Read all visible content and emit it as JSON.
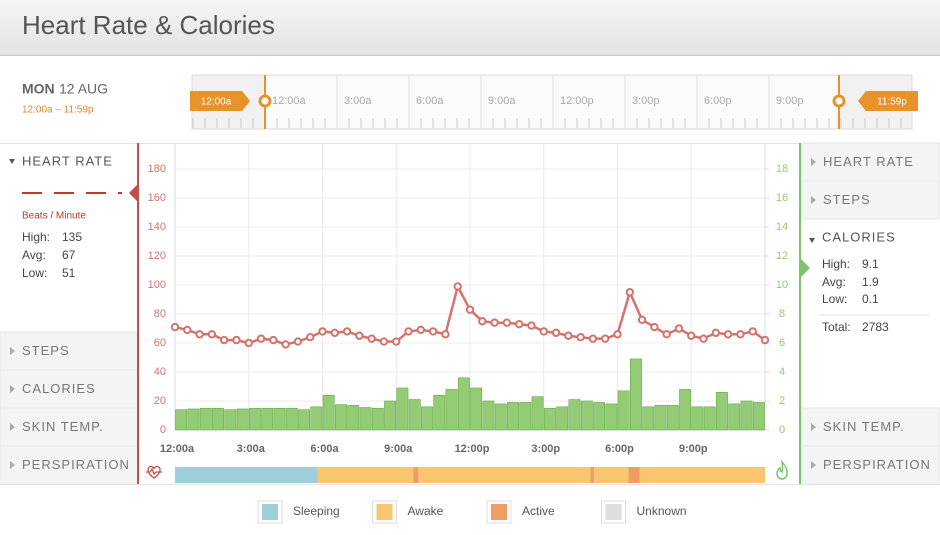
{
  "header": {
    "title": "Heart Rate & Calories"
  },
  "date": {
    "day": "MON",
    "date": "12 AUG",
    "range": "12:00a – 11:59p"
  },
  "timeline": {
    "start_label": "12:00a",
    "end_label": "11:59p",
    "labels": [
      "12:00a",
      "3:00a",
      "6:00a",
      "9:00a",
      "12:00p",
      "3:00p",
      "6:00p",
      "9:00p"
    ]
  },
  "left_panel": {
    "active": {
      "title": "HEART RATE",
      "unit": "Beats / Minute",
      "stats": [
        {
          "label": "High:",
          "value": 135
        },
        {
          "label": "Avg:",
          "value": 67
        },
        {
          "label": "Low:",
          "value": 51
        }
      ]
    },
    "sections": [
      "STEPS",
      "CALORIES",
      "SKIN TEMP.",
      "PERSPIRATION"
    ]
  },
  "right_panel": {
    "sections_top": [
      "HEART RATE",
      "STEPS"
    ],
    "active": {
      "title": "CALORIES",
      "stats": [
        {
          "label": "High:",
          "value": 9.1
        },
        {
          "label": "Avg:",
          "value": 1.9
        },
        {
          "label": "Low:",
          "value": 0.1
        }
      ],
      "total": {
        "label": "Total:",
        "value": 2783
      }
    },
    "sections_bottom": [
      "SKIN TEMP.",
      "PERSPIRATION"
    ]
  },
  "chart_data": {
    "type": "combo",
    "grid": true,
    "xlim": [
      0,
      24
    ],
    "xticks": [
      {
        "value": 0,
        "label": "12:00a"
      },
      {
        "value": 3,
        "label": "3:00a"
      },
      {
        "value": 6,
        "label": "6:00a"
      },
      {
        "value": 9,
        "label": "9:00a"
      },
      {
        "value": 12,
        "label": "12:00p"
      },
      {
        "value": 15,
        "label": "3:00p"
      },
      {
        "value": 18,
        "label": "6:00p"
      },
      {
        "value": 21,
        "label": "9:00p"
      }
    ],
    "ylim": [
      0,
      200
    ],
    "yticks": [
      0,
      20,
      40,
      60,
      80,
      100,
      120,
      140,
      160,
      180
    ],
    "y2lim": [
      0,
      20
    ],
    "y2ticks": [
      0,
      2,
      4,
      6,
      8,
      10,
      12,
      14,
      16,
      18
    ],
    "series": [
      {
        "type": "bar",
        "axis": "y2",
        "color": "#93cc74",
        "x": [
          0.25,
          0.75,
          1.25,
          1.75,
          2.25,
          2.75,
          3.25,
          3.75,
          4.25,
          4.75,
          5.25,
          5.75,
          6.25,
          6.75,
          7.25,
          7.75,
          8.25,
          8.75,
          9.25,
          9.75,
          10.25,
          10.75,
          11.25,
          11.75,
          12.25,
          12.75,
          13.25,
          13.75,
          14.25,
          14.75,
          15.25,
          15.75,
          16.25,
          16.75,
          17.25,
          17.75,
          18.25,
          18.75,
          19.25,
          19.75,
          20.25,
          20.75,
          21.25,
          21.75,
          22.25,
          22.75,
          23.25,
          23.75
        ],
        "values": [
          1.4,
          1.45,
          1.5,
          1.5,
          1.4,
          1.45,
          1.5,
          1.5,
          1.5,
          1.5,
          1.4,
          1.6,
          2.4,
          1.75,
          1.7,
          1.55,
          1.5,
          2.0,
          2.9,
          2.1,
          1.6,
          2.4,
          2.8,
          3.6,
          2.9,
          2.0,
          1.8,
          1.9,
          1.9,
          2.3,
          1.5,
          1.6,
          2.1,
          2.0,
          1.9,
          1.8,
          2.7,
          4.9,
          1.6,
          1.7,
          1.7,
          2.8,
          1.6,
          1.6,
          2.6,
          1.8,
          2.0,
          1.9
        ]
      },
      {
        "type": "line",
        "color": "#d4736b",
        "x": [
          0,
          0.5,
          1,
          1.5,
          2,
          2.5,
          3,
          3.5,
          4,
          4.5,
          5,
          5.5,
          6,
          6.5,
          7,
          7.5,
          8,
          8.5,
          9,
          9.5,
          10,
          10.5,
          11,
          11.5,
          12,
          12.5,
          13,
          13.5,
          14,
          14.5,
          15,
          15.5,
          16,
          16.5,
          17,
          17.5,
          18,
          18.5,
          19,
          19.5,
          20,
          20.5,
          21,
          21.5,
          22,
          22.5,
          23,
          23.5,
          24
        ],
        "values": [
          71,
          69,
          66,
          66,
          62,
          62,
          60,
          63,
          62,
          59,
          61,
          64,
          68,
          67,
          68,
          65,
          63,
          61,
          61,
          68,
          69,
          68,
          66,
          99,
          83,
          75,
          74,
          74,
          73,
          72,
          68,
          67,
          65,
          64,
          63,
          63,
          66,
          95,
          76,
          71,
          66,
          70,
          65,
          63,
          67,
          66,
          66,
          68,
          62
        ]
      }
    ],
    "activity_states": [
      {
        "name": "Sleeping",
        "color": "#9dcedb",
        "segments": [
          [
            0,
            5.8
          ]
        ]
      },
      {
        "name": "Awake",
        "color": "#f9c56f",
        "segments": [
          [
            5.8,
            9.7
          ],
          [
            9.9,
            16.9
          ],
          [
            17.05,
            18.45
          ],
          [
            18.9,
            24
          ]
        ]
      },
      {
        "name": "Active",
        "color": "#ee9e62",
        "segments": [
          [
            9.7,
            9.9
          ],
          [
            16.9,
            17.05
          ],
          [
            18.45,
            18.9
          ]
        ]
      },
      {
        "name": "Unknown",
        "color": "#dedede",
        "segments": []
      }
    ]
  }
}
